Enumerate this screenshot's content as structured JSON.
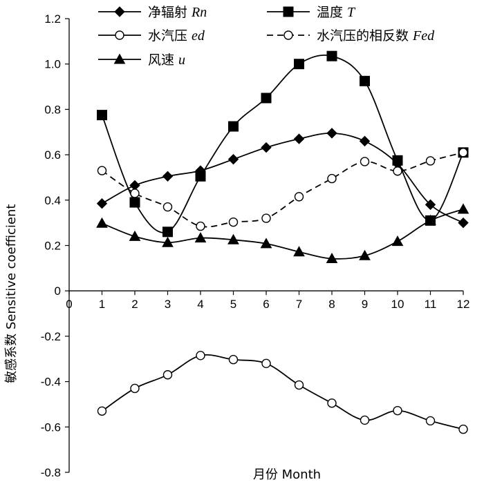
{
  "chart_data": {
    "type": "line",
    "title": "",
    "xlabel": "月份 Month",
    "ylabel": "敏感系数 Sensitive coefficient",
    "xlim": [
      0,
      12
    ],
    "ylim": [
      -0.8,
      1.2
    ],
    "x": [
      1,
      2,
      3,
      4,
      5,
      6,
      7,
      8,
      9,
      10,
      11,
      12
    ],
    "x_ticks": [
      "0",
      "1",
      "2",
      "3",
      "4",
      "5",
      "6",
      "7",
      "8",
      "9",
      "10",
      "11",
      "12"
    ],
    "y_ticks": [
      "-0.8",
      "-0.6",
      "-0.4",
      "-0.2",
      "0",
      "0.2",
      "0.4",
      "0.6",
      "0.8",
      "1.0",
      "1.2"
    ],
    "grid": false,
    "legend_position": "top",
    "series": [
      {
        "name": "净辐射 Rn",
        "label_cn": "净辐射",
        "label_sym": "Rn",
        "marker": "diamond-filled",
        "line": "solid",
        "values": [
          0.385,
          0.465,
          0.505,
          0.53,
          0.58,
          0.632,
          0.67,
          0.695,
          0.66,
          0.56,
          0.38,
          0.3
        ]
      },
      {
        "name": "温度 T",
        "label_cn": "温度",
        "label_sym": "T",
        "marker": "square-filled",
        "line": "solid",
        "values": [
          0.775,
          0.39,
          0.26,
          0.505,
          0.725,
          0.85,
          1.0,
          1.035,
          0.925,
          0.575,
          0.31,
          0.61
        ]
      },
      {
        "name": "水汽压 ed",
        "label_cn": "水汽压",
        "label_sym": "ed",
        "marker": "circle-open",
        "line": "solid",
        "values": [
          -0.53,
          -0.43,
          -0.37,
          -0.285,
          -0.303,
          -0.32,
          -0.415,
          -0.495,
          -0.57,
          -0.528,
          -0.573,
          -0.61
        ]
      },
      {
        "name": "水汽压的相反数 Fed",
        "label_cn": "水汽压的相反数",
        "label_sym": "Fed",
        "marker": "circle-open",
        "line": "dashed",
        "values": [
          0.53,
          0.43,
          0.37,
          0.285,
          0.303,
          0.32,
          0.415,
          0.495,
          0.57,
          0.528,
          0.573,
          0.61
        ]
      },
      {
        "name": "风速 u",
        "label_cn": "风速",
        "label_sym": "u",
        "marker": "triangle-filled",
        "line": "solid",
        "values": [
          0.298,
          0.24,
          0.213,
          0.233,
          0.225,
          0.208,
          0.172,
          0.142,
          0.155,
          0.218,
          0.31,
          0.36
        ]
      }
    ],
    "colors": {
      "line": "#000000",
      "marker_fill": "#000000",
      "open_fill": "#ffffff",
      "background": "#ffffff"
    }
  }
}
